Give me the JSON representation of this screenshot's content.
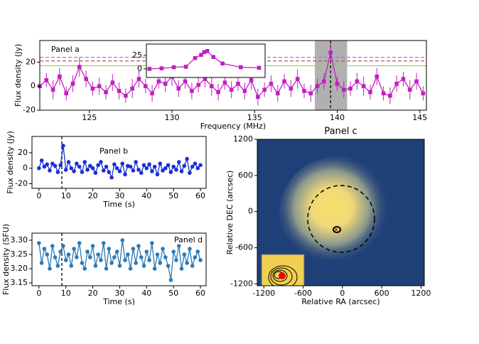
{
  "chart_data": [
    {
      "type": "line",
      "annotation": "Panel a",
      "xlabel": "Frequency (MHz)",
      "ylabel": "Flux density (Jy)",
      "marker": "square",
      "xlim": [
        122,
        145.4
      ],
      "ylim": [
        -20,
        38
      ],
      "xticks": [
        125,
        130,
        135,
        140,
        145
      ],
      "yticks": [
        -20,
        0,
        20
      ],
      "hlines": [
        {
          "value": 24,
          "color": "#7f7fff",
          "style": "dashed"
        },
        {
          "value": 21,
          "color": "#c85050",
          "style": "dashed"
        },
        {
          "value": 17,
          "color": "#a8c860",
          "style": "solid"
        }
      ],
      "span": [
        138.65,
        140.6
      ],
      "span_color": "#b0b0b0",
      "vline": 139.6,
      "series": [
        {
          "color": "#c020c0",
          "x": [
            122.0,
            122.4,
            122.8,
            123.2,
            123.6,
            124.0,
            124.4,
            124.8,
            125.2,
            125.6,
            126.0,
            126.4,
            126.8,
            127.2,
            127.6,
            128.0,
            128.4,
            128.8,
            129.2,
            129.6,
            130.0,
            130.4,
            130.8,
            131.2,
            131.6,
            132.0,
            132.4,
            132.8,
            133.2,
            133.6,
            134.0,
            134.4,
            134.8,
            135.2,
            135.6,
            136.0,
            136.4,
            136.8,
            137.2,
            137.6,
            138.0,
            138.4,
            138.8,
            139.2,
            139.6,
            140.0,
            140.4,
            140.8,
            141.2,
            141.6,
            142.0,
            142.4,
            142.8,
            143.2,
            143.6,
            144.0,
            144.4,
            144.8,
            145.2
          ],
          "values": [
            0,
            5,
            -3,
            8,
            -6,
            2,
            16,
            6,
            -2,
            0,
            -5,
            3,
            -4,
            -8,
            -2,
            6,
            0,
            -6,
            4,
            2,
            8,
            -2,
            4,
            -4,
            1,
            6,
            0,
            -5,
            3,
            -3,
            2,
            -4,
            5,
            -9,
            -3,
            2,
            -6,
            4,
            -2,
            6,
            -4,
            -6,
            0,
            4,
            28,
            2,
            -3,
            -2,
            4,
            0,
            -5,
            8,
            -6,
            -8,
            2,
            6,
            -3,
            4,
            -6
          ],
          "errors": [
            7,
            6,
            8,
            7,
            6,
            7,
            8,
            7,
            6,
            7,
            6,
            7,
            7,
            6,
            8,
            7,
            6,
            7,
            6,
            7,
            8,
            7,
            6,
            7,
            6,
            7,
            8,
            7,
            6,
            7,
            6,
            7,
            8,
            7,
            6,
            7,
            7,
            6,
            7,
            8,
            6,
            7,
            6,
            7,
            8,
            6,
            7,
            6,
            7,
            8,
            6,
            7,
            6,
            7,
            7,
            6,
            8,
            7,
            6
          ]
        }
      ]
    },
    {
      "type": "line",
      "marker": "square",
      "xlim": [
        138.65,
        140.6
      ],
      "ylim": [
        -16,
        46
      ],
      "yticks": [
        0,
        25
      ],
      "series": [
        {
          "color": "#c020c0",
          "x": [
            138.7,
            138.9,
            139.1,
            139.3,
            139.45,
            139.55,
            139.6,
            139.65,
            139.75,
            139.9,
            140.2,
            140.5
          ],
          "values": [
            0,
            1,
            3,
            4,
            20,
            26,
            31,
            33,
            22,
            10,
            3,
            2
          ]
        }
      ]
    },
    {
      "type": "line",
      "annotation": "Panel b",
      "xlabel": "Time (s)",
      "ylabel": "Flux density (Jy)",
      "marker": "circle",
      "xlim": [
        -2.6,
        62.1
      ],
      "ylim": [
        -26,
        41
      ],
      "xticks": [
        0,
        10,
        20,
        30,
        40,
        50,
        60
      ],
      "yticks": [
        -20,
        0,
        20
      ],
      "vline": 8.5,
      "series": [
        {
          "color": "#1a2fd8",
          "x": [
            0,
            1,
            2,
            3,
            4,
            5,
            6,
            7,
            8,
            9,
            10,
            11,
            12,
            13,
            14,
            15,
            16,
            17,
            18,
            19,
            20,
            21,
            22,
            23,
            24,
            25,
            26,
            27,
            28,
            29,
            30,
            31,
            32,
            33,
            34,
            35,
            36,
            37,
            38,
            39,
            40,
            41,
            42,
            43,
            44,
            45,
            46,
            47,
            48,
            49,
            50,
            51,
            52,
            53,
            54,
            55,
            56,
            57,
            58,
            59,
            60
          ],
          "values": [
            0,
            10,
            2,
            5,
            -3,
            6,
            3,
            -5,
            4,
            29,
            -2,
            8,
            0,
            -4,
            6,
            2,
            -5,
            8,
            -2,
            3,
            0,
            -6,
            4,
            8,
            -3,
            2,
            -5,
            -12,
            5,
            0,
            -4,
            6,
            -8,
            3,
            2,
            -3,
            8,
            -2,
            -6,
            4,
            0,
            5,
            -4,
            2,
            -8,
            6,
            -3,
            0,
            4,
            -5,
            2,
            -2,
            8,
            -4,
            3,
            12,
            -6,
            2,
            6,
            0,
            4
          ]
        }
      ]
    },
    {
      "type": "line",
      "annotation": "Panel d",
      "xlabel": "Time (s)",
      "ylabel": "Flux density (SFU)",
      "marker": "circle",
      "xlim": [
        -2.6,
        62.1
      ],
      "ylim": [
        3.14,
        3.325
      ],
      "xticks": [
        0,
        10,
        20,
        30,
        40,
        50,
        60
      ],
      "yticks": [
        3.15,
        {
          "value": 3.2,
          "label": "3.20"
        },
        3.25,
        {
          "value": 3.3,
          "label": "3.30"
        }
      ],
      "vline": 8.5,
      "series": [
        {
          "color": "#2a7ab8",
          "x": [
            0,
            1,
            2,
            3,
            4,
            5,
            6,
            7,
            8,
            9,
            10,
            11,
            12,
            13,
            14,
            15,
            16,
            17,
            18,
            19,
            20,
            21,
            22,
            23,
            24,
            25,
            26,
            27,
            28,
            29,
            30,
            31,
            32,
            33,
            34,
            35,
            36,
            37,
            38,
            39,
            40,
            41,
            42,
            43,
            44,
            45,
            46,
            47,
            48,
            49,
            50,
            51,
            52,
            53,
            54,
            55,
            56,
            57,
            58,
            59,
            60
          ],
          "values": [
            3.29,
            3.22,
            3.27,
            3.25,
            3.2,
            3.28,
            3.24,
            3.21,
            3.26,
            3.28,
            3.23,
            3.25,
            3.21,
            3.27,
            3.24,
            3.29,
            3.22,
            3.2,
            3.26,
            3.24,
            3.28,
            3.21,
            3.25,
            3.23,
            3.29,
            3.2,
            3.27,
            3.22,
            3.24,
            3.26,
            3.21,
            3.3,
            3.23,
            3.25,
            3.2,
            3.27,
            3.22,
            3.28,
            3.24,
            3.21,
            3.26,
            3.23,
            3.29,
            3.2,
            3.25,
            3.22,
            3.27,
            3.24,
            3.21,
            3.16,
            3.26,
            3.23,
            3.28,
            3.2,
            3.25,
            3.22,
            3.27,
            3.21,
            3.24,
            3.26,
            3.23
          ]
        }
      ]
    },
    {
      "type": "image",
      "title": "Panel c",
      "xlabel": "Relative RA (arcsec)",
      "ylabel": "Relative DEC (arcsec)",
      "xlim": [
        -1300,
        1250
      ],
      "ylim": [
        -1230,
        1200
      ],
      "xticks": [
        -1200,
        -600,
        0,
        600,
        1200
      ],
      "yticks": [
        -1200,
        -600,
        0,
        600,
        1200
      ]
    }
  ]
}
